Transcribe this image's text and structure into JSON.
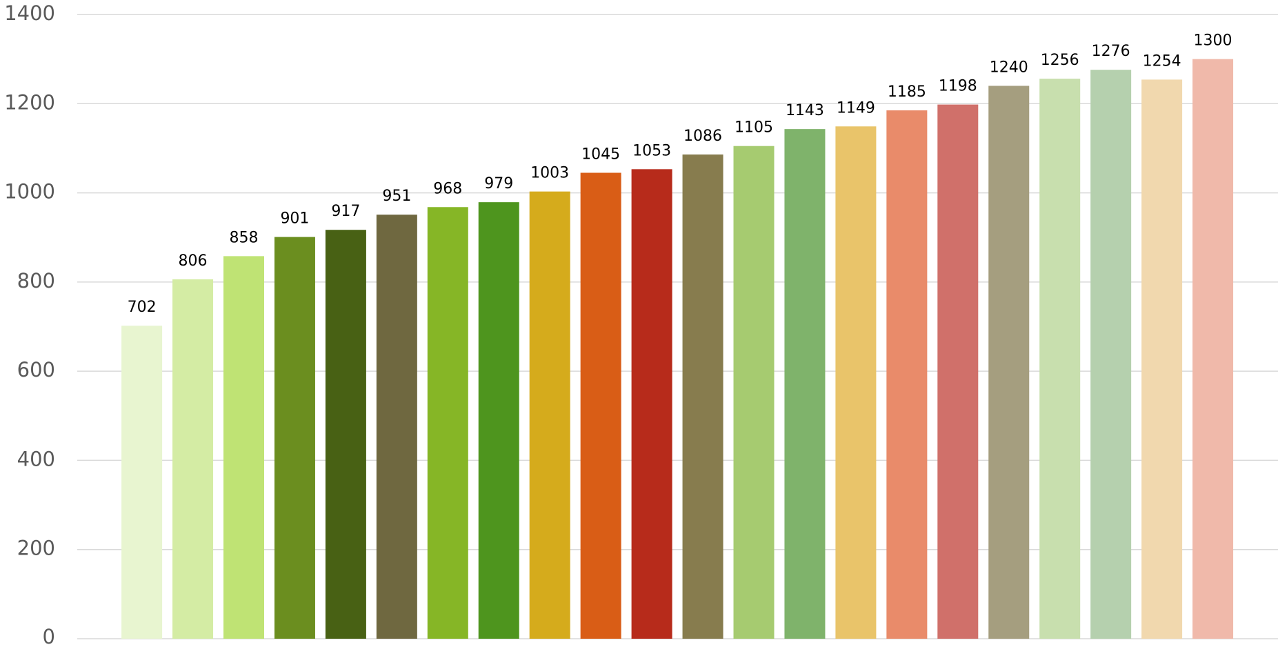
{
  "chart_data": {
    "type": "bar",
    "values": [
      702,
      806,
      858,
      901,
      917,
      951,
      968,
      979,
      1003,
      1045,
      1053,
      1086,
      1105,
      1143,
      1149,
      1185,
      1198,
      1240,
      1256,
      1276,
      1254,
      1300
    ],
    "colors": [
      "#e8f5d0",
      "#d4eca4",
      "#bfe374",
      "#6b8e1f",
      "#486114",
      "#6f6840",
      "#86b626",
      "#4e951e",
      "#d5ab1c",
      "#d95d16",
      "#b72b1b",
      "#877c4e",
      "#a6cb70",
      "#7fb36b",
      "#e9c46a",
      "#e98b6a",
      "#d0706a",
      "#a59e7f",
      "#c8dfae",
      "#b5d0ae",
      "#f1d8ae",
      "#f0b9aa"
    ],
    "ylim": [
      0,
      1400
    ],
    "yticks": [
      0,
      200,
      400,
      600,
      800,
      1000,
      1200,
      1400
    ],
    "grid": true
  }
}
